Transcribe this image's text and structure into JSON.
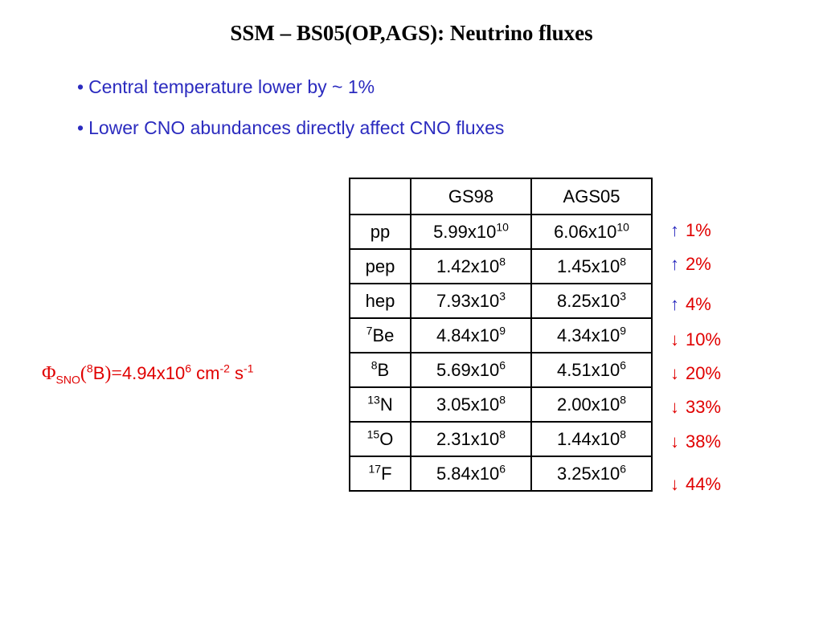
{
  "title": "SSM – BS05(OP,AGS): Neutrino fluxes",
  "bullets": [
    {
      "marker": "•",
      "text": "Central temperature lower by ~ 1%"
    },
    {
      "marker": "•",
      "text": "Lower CNO abundances directly affect CNO fluxes"
    }
  ],
  "table": {
    "headers": [
      "",
      "GS98",
      "AGS05"
    ],
    "rows": [
      {
        "sup": "",
        "name": "pp",
        "gs98": {
          "m": "5.99x10",
          "e": "10"
        },
        "ags05": {
          "m": "6.06x10",
          "e": "10"
        }
      },
      {
        "sup": "",
        "name": "pep",
        "gs98": {
          "m": "1.42x10",
          "e": "8"
        },
        "ags05": {
          "m": "1.45x10",
          "e": "8"
        }
      },
      {
        "sup": "",
        "name": "hep",
        "gs98": {
          "m": "7.93x10",
          "e": "3"
        },
        "ags05": {
          "m": "8.25x10",
          "e": "3"
        }
      },
      {
        "sup": "7",
        "name": "Be",
        "gs98": {
          "m": "4.84x10",
          "e": "9"
        },
        "ags05": {
          "m": "4.34x10",
          "e": "9"
        }
      },
      {
        "sup": "8",
        "name": "B",
        "gs98": {
          "m": "5.69x10",
          "e": "6"
        },
        "ags05": {
          "m": "4.51x10",
          "e": "6"
        }
      },
      {
        "sup": "13",
        "name": "N",
        "gs98": {
          "m": "3.05x10",
          "e": "8"
        },
        "ags05": {
          "m": "2.00x10",
          "e": "8"
        }
      },
      {
        "sup": "15",
        "name": "O",
        "gs98": {
          "m": "2.31x10",
          "e": "8"
        },
        "ags05": {
          "m": "1.44x10",
          "e": "8"
        }
      },
      {
        "sup": "17",
        "name": "F",
        "gs98": {
          "m": "5.84x10",
          "e": "6"
        },
        "ags05": {
          "m": "3.25x10",
          "e": "6"
        }
      }
    ]
  },
  "changes": [
    {
      "arrow": "↑",
      "value": "1%",
      "direction": "up"
    },
    {
      "arrow": "↑",
      "value": "2%",
      "direction": "up"
    },
    {
      "arrow": "↑",
      "value": "4%",
      "direction": "up"
    },
    {
      "arrow": "↓",
      "value": "10%",
      "direction": "down"
    },
    {
      "arrow": "↓",
      "value": "20%",
      "direction": "down"
    },
    {
      "arrow": "↓",
      "value": "33%",
      "direction": "down"
    },
    {
      "arrow": "↓",
      "value": "38%",
      "direction": "down"
    },
    {
      "arrow": "↓",
      "value": "44%",
      "direction": "down"
    }
  ],
  "sno_flux": {
    "phi": "Φ",
    "sub": "SNO",
    "open": "(",
    "iso_sup": "8",
    "iso": "B",
    "close_eq": ")=",
    "value": "4.94x10",
    "value_exp": "6",
    "unit1": " cm",
    "unit1_exp": "-2",
    "unit2": " s",
    "unit2_exp": "-1"
  },
  "colors": {
    "bullet_text": "#2b2bbf",
    "up_arrow": "#2b2bbf",
    "down_arrow": "#e00000",
    "change_text": "#e00000",
    "sno_text": "#e00000"
  }
}
